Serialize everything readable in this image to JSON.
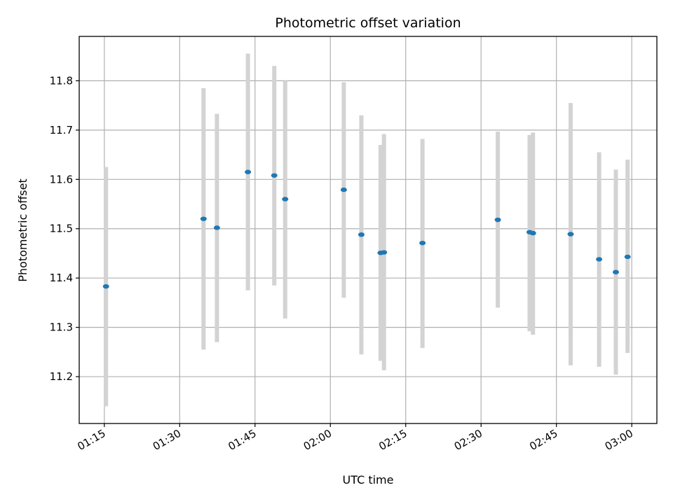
{
  "chart_data": {
    "type": "scatter",
    "title": "Photometric offset variation",
    "xlabel": "UTC time",
    "ylabel": "Photometric offset",
    "grid": true,
    "xlim": [
      "01:10",
      "03:05"
    ],
    "ylim": [
      11.105,
      11.89
    ],
    "x_ticks": [
      "01:15",
      "01:30",
      "01:45",
      "02:00",
      "02:15",
      "02:30",
      "02:45",
      "03:00"
    ],
    "y_ticks": [
      11.2,
      11.3,
      11.4,
      11.5,
      11.6,
      11.7,
      11.8
    ],
    "point_color": "#1f77b4",
    "errorbar_color": "#d3d3d3",
    "points": [
      {
        "x": "01:15:20",
        "y": 11.383,
        "ylow": 11.14,
        "yhigh": 11.625
      },
      {
        "x": "01:34:45",
        "y": 11.52,
        "ylow": 11.255,
        "yhigh": 11.785
      },
      {
        "x": "01:37:25",
        "y": 11.502,
        "ylow": 11.27,
        "yhigh": 11.733
      },
      {
        "x": "01:43:35",
        "y": 11.615,
        "ylow": 11.375,
        "yhigh": 11.855
      },
      {
        "x": "01:48:50",
        "y": 11.608,
        "ylow": 11.385,
        "yhigh": 11.83
      },
      {
        "x": "01:51:00",
        "y": 11.56,
        "ylow": 11.318,
        "yhigh": 11.8
      },
      {
        "x": "02:02:40",
        "y": 11.579,
        "ylow": 11.36,
        "yhigh": 11.797
      },
      {
        "x": "02:06:10",
        "y": 11.488,
        "ylow": 11.245,
        "yhigh": 11.73
      },
      {
        "x": "02:10:00",
        "y": 11.451,
        "ylow": 11.232,
        "yhigh": 11.67
      },
      {
        "x": "02:10:40",
        "y": 11.452,
        "ylow": 11.213,
        "yhigh": 11.692
      },
      {
        "x": "02:18:20",
        "y": 11.471,
        "ylow": 11.258,
        "yhigh": 11.682
      },
      {
        "x": "02:33:20",
        "y": 11.518,
        "ylow": 11.34,
        "yhigh": 11.697
      },
      {
        "x": "02:39:40",
        "y": 11.493,
        "ylow": 11.292,
        "yhigh": 11.69
      },
      {
        "x": "02:40:20",
        "y": 11.491,
        "ylow": 11.285,
        "yhigh": 11.695
      },
      {
        "x": "02:47:50",
        "y": 11.489,
        "ylow": 11.223,
        "yhigh": 11.755
      },
      {
        "x": "02:53:30",
        "y": 11.438,
        "ylow": 11.22,
        "yhigh": 11.655
      },
      {
        "x": "02:56:50",
        "y": 11.412,
        "ylow": 11.204,
        "yhigh": 11.62
      },
      {
        "x": "02:59:10",
        "y": 11.443,
        "ylow": 11.248,
        "yhigh": 11.64
      }
    ]
  }
}
